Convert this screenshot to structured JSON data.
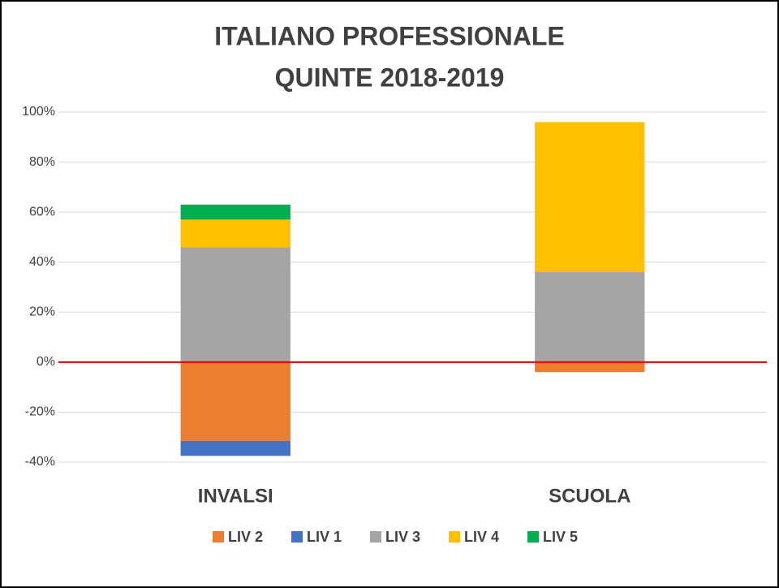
{
  "chart_data": {
    "type": "stacked_bar",
    "title": [
      "ITALIANO PROFESSIONALE",
      "QUINTE 2018-2019"
    ],
    "categories": [
      "INVALSI",
      "SCUOLA"
    ],
    "series": [
      {
        "name": "LIV 2",
        "color": "#ed7d31",
        "values": [
          -31.5,
          -4
        ]
      },
      {
        "name": "LIV 1",
        "color": "#4472c4",
        "values": [
          -6,
          0
        ]
      },
      {
        "name": "LIV 3",
        "color": "#a5a5a5",
        "values": [
          46,
          36
        ]
      },
      {
        "name": "LIV 4",
        "color": "#ffc000",
        "values": [
          11,
          60
        ]
      },
      {
        "name": "LIV 5",
        "color": "#00b050",
        "values": [
          6,
          0
        ]
      }
    ],
    "ylim": [
      -40,
      100
    ],
    "yticks": [
      {
        "value": -40,
        "label": "-40%"
      },
      {
        "value": -20,
        "label": "-20%"
      },
      {
        "value": 0,
        "label": "0%"
      },
      {
        "value": 20,
        "label": "20%"
      },
      {
        "value": 40,
        "label": "40%"
      },
      {
        "value": 60,
        "label": "60%"
      },
      {
        "value": 80,
        "label": "80%"
      },
      {
        "value": 100,
        "label": "100%"
      }
    ],
    "grid": true,
    "zero_line_color": "#e00000",
    "legend": "bottom"
  }
}
